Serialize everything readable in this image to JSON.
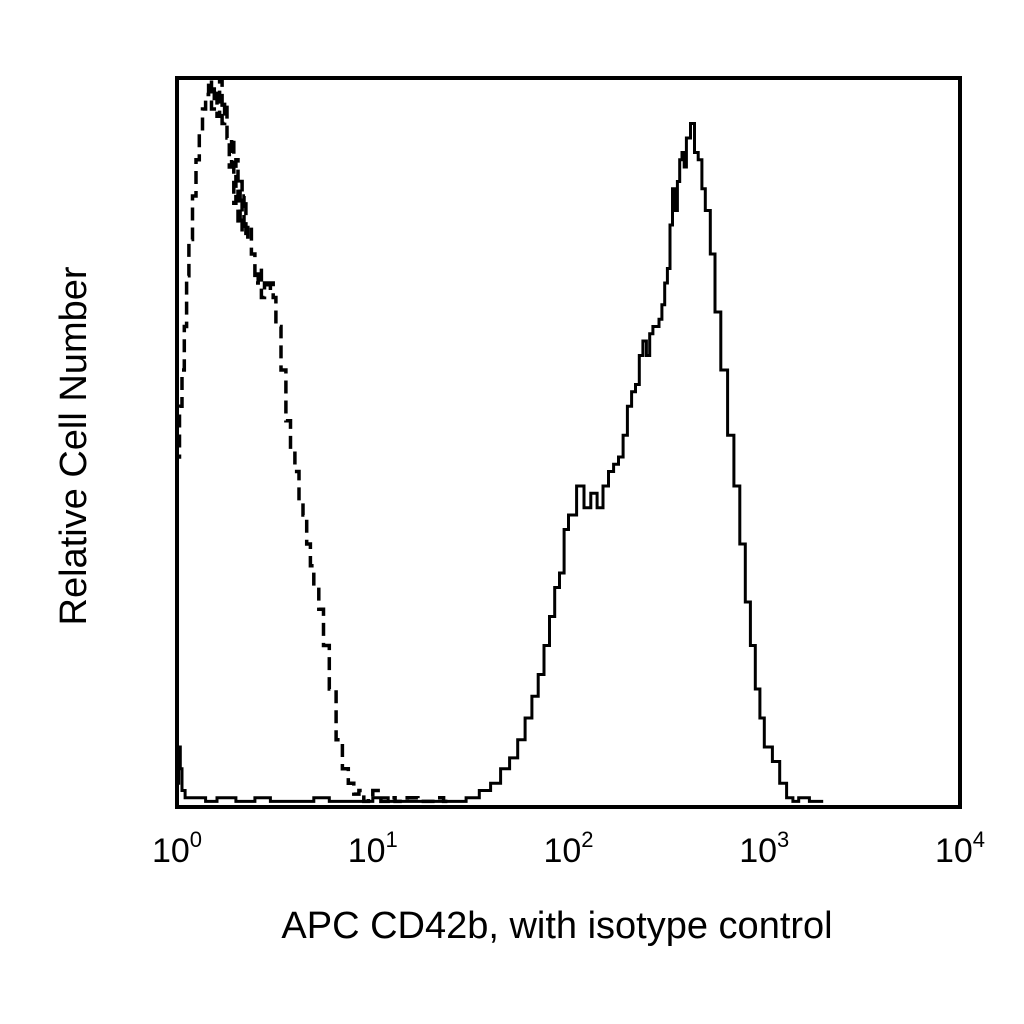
{
  "chart_data": {
    "type": "line",
    "title": "",
    "xlabel": "APC CD42b, with isotype control",
    "ylabel": "Relative Cell Number",
    "x_scale": "log",
    "xlim": [
      1,
      10000
    ],
    "ylim": [
      0,
      100
    ],
    "grid": false,
    "legend": "none",
    "x_ticks": [
      {
        "value": 1,
        "base": "10",
        "exp": "0"
      },
      {
        "value": 10,
        "base": "10",
        "exp": "1"
      },
      {
        "value": 100,
        "base": "10",
        "exp": "2"
      },
      {
        "value": 1000,
        "base": "10",
        "exp": "3"
      },
      {
        "value": 10000,
        "base": "10",
        "exp": "4"
      }
    ],
    "series": [
      {
        "style": "dashed",
        "color": "#000000",
        "x": [
          1.0,
          1.03,
          1.06,
          1.09,
          1.12,
          1.15,
          1.2,
          1.25,
          1.3,
          1.35,
          1.4,
          1.45,
          1.5,
          1.55,
          1.6,
          1.65,
          1.7,
          1.75,
          1.8,
          1.85,
          1.9,
          1.95,
          2.0,
          2.05,
          2.1,
          2.15,
          2.2,
          2.25,
          2.3,
          2.4,
          2.5,
          2.6,
          2.7,
          2.8,
          2.9,
          3.0,
          3.1,
          3.2,
          3.4,
          3.6,
          3.8,
          4.0,
          4.2,
          4.4,
          4.6,
          4.8,
          5.0,
          5.3,
          5.6,
          6.0,
          6.5,
          7.0,
          7.5,
          8.0,
          8.5,
          9.0,
          9.5,
          10.0,
          11.0,
          12.0,
          13.0,
          15.0,
          17.0,
          19.0,
          21.0,
          23.0,
          25.0
        ],
        "values": [
          48,
          55,
          60,
          66,
          73,
          78,
          84,
          89,
          93,
          96,
          98,
          100,
          96,
          99,
          95,
          100,
          94,
          97,
          92,
          88,
          92,
          83,
          89,
          80,
          86,
          79,
          84,
          78,
          80,
          76,
          72,
          74,
          70,
          72,
          71,
          72,
          70,
          66,
          60,
          53,
          49,
          46,
          42,
          40,
          36,
          33,
          30,
          27,
          22,
          16,
          9,
          5,
          3,
          1.5,
          2,
          0.5,
          1,
          2,
          0.5,
          1,
          0.5,
          1,
          0.5,
          0.5,
          1,
          0.5,
          0.5
        ]
      },
      {
        "style": "solid",
        "color": "#000000",
        "x": [
          1.0,
          1.02,
          1.04,
          1.06,
          1.1,
          1.2,
          1.4,
          1.6,
          2.0,
          2.5,
          3.0,
          4.0,
          5.0,
          6.0,
          8.0,
          10.0,
          12.0,
          15.0,
          20.0,
          25.0,
          30.0,
          35.0,
          40.0,
          45.0,
          50.0,
          55.0,
          60.0,
          65.0,
          70.0,
          75.0,
          80.0,
          85.0,
          90.0,
          95.0,
          100.0,
          110.0,
          120.0,
          130.0,
          140.0,
          150.0,
          160.0,
          170.0,
          180.0,
          190.0,
          200.0,
          210.0,
          220.0,
          230.0,
          240.0,
          250.0,
          260.0,
          270.0,
          280.0,
          290.0,
          300.0,
          310.0,
          320.0,
          330.0,
          340.0,
          350.0,
          360.0,
          370.0,
          380.0,
          390.0,
          400.0,
          420.0,
          440.0,
          460.0,
          480.0,
          500.0,
          530.0,
          560.0,
          600.0,
          650.0,
          700.0,
          750.0,
          800.0,
          850.0,
          900.0,
          950.0,
          1000.0,
          1100.0,
          1200.0,
          1300.0,
          1400.0,
          1500.0,
          1700.0,
          2000.0
        ],
        "values": [
          3,
          8,
          5,
          2,
          1,
          1,
          0.5,
          1,
          0.5,
          1,
          0.5,
          0.5,
          1,
          0.5,
          0.5,
          1,
          0.5,
          0.5,
          0.5,
          0.5,
          1,
          2,
          3,
          5,
          6.5,
          9,
          12,
          15,
          18,
          22,
          26,
          30,
          32,
          38,
          40,
          44,
          41,
          43,
          41,
          44,
          46,
          47,
          48,
          51,
          55,
          57,
          58,
          62,
          64,
          62,
          65,
          66,
          66,
          67,
          69,
          72,
          74,
          80,
          85,
          82,
          86,
          89,
          90,
          88,
          92,
          94,
          90,
          89,
          85,
          82,
          76,
          68,
          60,
          51,
          44,
          36,
          28,
          22,
          16,
          12,
          8,
          6,
          3,
          1,
          0.5,
          1,
          0.5,
          0.5
        ]
      }
    ]
  }
}
